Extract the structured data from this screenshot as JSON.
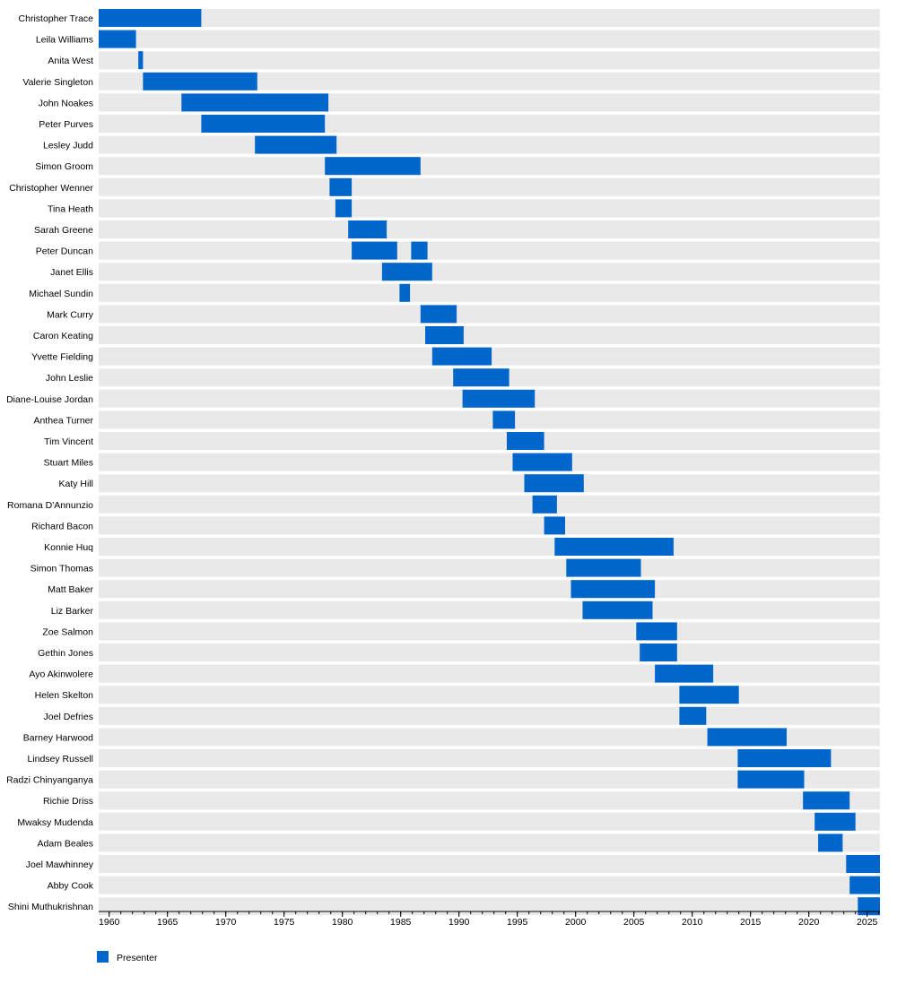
{
  "colors": {
    "presenter": "#0066cc",
    "row_bg": "#e9e9e9"
  },
  "chart_data": {
    "type": "bar",
    "subtype": "timeline",
    "title": "",
    "xlabel": "",
    "ylabel": "",
    "xlim": [
      1959.1,
      2026.1
    ],
    "x_ticks": [
      1960,
      1965,
      1970,
      1975,
      1980,
      1985,
      1990,
      1995,
      2000,
      2005,
      2010,
      2015,
      2020,
      2025
    ],
    "x_tick_labels": [
      "1960",
      "1965",
      "1970",
      "1975",
      "1980",
      "1985",
      "1990",
      "1995",
      "2000",
      "2005",
      "2010",
      "2015",
      "2020",
      "2025"
    ],
    "minor_tick_step": 1,
    "legend_position": "bottom-left",
    "series": [
      {
        "name": "Presenter",
        "color": "#0066cc"
      }
    ],
    "rows": [
      {
        "name": "Christopher Trace",
        "spans": [
          [
            1959.1,
            1967.9
          ]
        ]
      },
      {
        "name": "Leila Williams",
        "spans": [
          [
            1959.1,
            1962.3
          ]
        ]
      },
      {
        "name": "Anita West",
        "spans": [
          [
            1962.5,
            1962.9
          ]
        ]
      },
      {
        "name": "Valerie Singleton",
        "spans": [
          [
            1962.9,
            1972.7
          ]
        ]
      },
      {
        "name": "John Noakes",
        "spans": [
          [
            1966.2,
            1978.8
          ]
        ]
      },
      {
        "name": "Peter Purves",
        "spans": [
          [
            1967.9,
            1978.5
          ]
        ]
      },
      {
        "name": "Lesley Judd",
        "spans": [
          [
            1972.5,
            1979.5
          ]
        ]
      },
      {
        "name": "Simon Groom",
        "spans": [
          [
            1978.5,
            1986.7
          ]
        ]
      },
      {
        "name": "Christopher Wenner",
        "spans": [
          [
            1978.9,
            1980.8
          ]
        ]
      },
      {
        "name": "Tina Heath",
        "spans": [
          [
            1979.4,
            1980.8
          ]
        ]
      },
      {
        "name": "Sarah Greene",
        "spans": [
          [
            1980.5,
            1983.8
          ]
        ]
      },
      {
        "name": "Peter Duncan",
        "spans": [
          [
            1980.8,
            1984.7
          ],
          [
            1985.9,
            1987.3
          ]
        ]
      },
      {
        "name": "Janet Ellis",
        "spans": [
          [
            1983.4,
            1987.7
          ]
        ]
      },
      {
        "name": "Michael Sundin",
        "spans": [
          [
            1984.9,
            1985.8
          ]
        ]
      },
      {
        "name": "Mark Curry",
        "spans": [
          [
            1986.7,
            1989.8
          ]
        ]
      },
      {
        "name": "Caron Keating",
        "spans": [
          [
            1987.1,
            1990.4
          ]
        ]
      },
      {
        "name": "Yvette Fielding",
        "spans": [
          [
            1987.7,
            1992.8
          ]
        ]
      },
      {
        "name": "John Leslie",
        "spans": [
          [
            1989.5,
            1994.3
          ]
        ]
      },
      {
        "name": "Diane-Louise Jordan",
        "spans": [
          [
            1990.3,
            1996.5
          ]
        ]
      },
      {
        "name": "Anthea Turner",
        "spans": [
          [
            1992.9,
            1994.8
          ]
        ]
      },
      {
        "name": "Tim Vincent",
        "spans": [
          [
            1994.1,
            1997.3
          ]
        ]
      },
      {
        "name": "Stuart Miles",
        "spans": [
          [
            1994.6,
            1999.7
          ]
        ]
      },
      {
        "name": "Katy Hill",
        "spans": [
          [
            1995.6,
            2000.7
          ]
        ]
      },
      {
        "name": "Romana D'Annunzio",
        "spans": [
          [
            1996.3,
            1998.4
          ]
        ]
      },
      {
        "name": "Richard Bacon",
        "spans": [
          [
            1997.3,
            1999.1
          ]
        ]
      },
      {
        "name": "Konnie Huq",
        "spans": [
          [
            1998.2,
            2008.4
          ]
        ]
      },
      {
        "name": "Simon Thomas",
        "spans": [
          [
            1999.2,
            2005.6
          ]
        ]
      },
      {
        "name": "Matt Baker",
        "spans": [
          [
            1999.6,
            2006.8
          ]
        ]
      },
      {
        "name": "Liz Barker",
        "spans": [
          [
            2000.6,
            2006.6
          ]
        ]
      },
      {
        "name": "Zoe Salmon",
        "spans": [
          [
            2005.2,
            2008.7
          ]
        ]
      },
      {
        "name": "Gethin Jones",
        "spans": [
          [
            2005.5,
            2008.7
          ]
        ]
      },
      {
        "name": "Ayo Akinwolere",
        "spans": [
          [
            2006.8,
            2011.8
          ]
        ]
      },
      {
        "name": "Helen Skelton",
        "spans": [
          [
            2008.9,
            2014.0
          ]
        ]
      },
      {
        "name": "Joel Defries",
        "spans": [
          [
            2008.9,
            2011.2
          ]
        ]
      },
      {
        "name": "Barney Harwood",
        "spans": [
          [
            2011.3,
            2018.1
          ]
        ]
      },
      {
        "name": "Lindsey Russell",
        "spans": [
          [
            2013.9,
            2021.9
          ]
        ]
      },
      {
        "name": "Radzi Chinyanganya",
        "spans": [
          [
            2013.9,
            2019.6
          ]
        ]
      },
      {
        "name": "Richie Driss",
        "spans": [
          [
            2019.5,
            2023.5
          ]
        ]
      },
      {
        "name": "Mwaksy Mudenda",
        "spans": [
          [
            2020.5,
            2024.0
          ]
        ]
      },
      {
        "name": "Adam Beales",
        "spans": [
          [
            2020.8,
            2022.9
          ]
        ]
      },
      {
        "name": "Joel Mawhinney",
        "spans": [
          [
            2023.2,
            2026.1
          ]
        ]
      },
      {
        "name": "Abby Cook",
        "spans": [
          [
            2023.5,
            2026.1
          ]
        ]
      },
      {
        "name": "Shini Muthukrishnan",
        "spans": [
          [
            2024.2,
            2026.1
          ]
        ]
      }
    ]
  }
}
